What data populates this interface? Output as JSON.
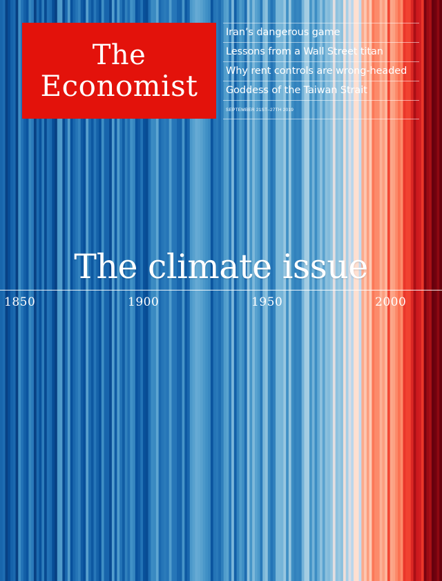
{
  "masthead": {
    "line1": "The",
    "line2": "Economist"
  },
  "headlines": [
    "Iran’s dangerous game",
    "Lessons from a Wall Street titan",
    "Why rent controls are wrong-headed",
    "Goddess of the Taiwan Strait"
  ],
  "issue_date": "September 21st–27th 2019",
  "cover_title": "The climate issue",
  "axis_years": [
    "1850",
    "1900",
    "1950",
    "2000"
  ],
  "colors": {
    "masthead_red": "#e3120b",
    "deep_blue": "#08306b",
    "blue": "#2171b5",
    "light_blue": "#c6dbef",
    "light_red": "#fcbba1",
    "red": "#cb181d",
    "deep_red": "#67000d"
  }
}
